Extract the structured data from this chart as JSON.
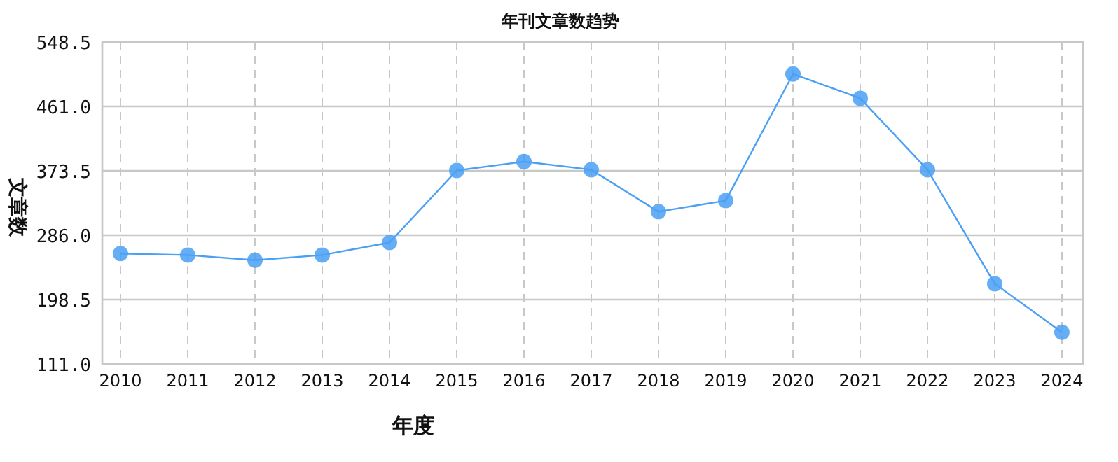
{
  "chart_data": {
    "type": "line",
    "title": "年刊文章数趋势",
    "xlabel": "年度",
    "ylabel": "文章数",
    "categories": [
      "2010",
      "2011",
      "2012",
      "2013",
      "2014",
      "2015",
      "2016",
      "2017",
      "2018",
      "2019",
      "2020",
      "2021",
      "2022",
      "2023",
      "2024"
    ],
    "series": [
      {
        "color": "#4aa0f5",
        "values": [
          261,
          259,
          252,
          259,
          276,
          374,
          386,
          375,
          318,
          333,
          505,
          472,
          375,
          220,
          154
        ]
      }
    ],
    "ylim": [
      111.0,
      548.5
    ],
    "yticks": [
      {
        "value": 111.0,
        "label": "111.0"
      },
      {
        "value": 198.5,
        "label": "198.5"
      },
      {
        "value": 286.0,
        "label": "286.0"
      },
      {
        "value": 373.5,
        "label": "373.5"
      },
      {
        "value": 461.0,
        "label": "461.0"
      },
      {
        "value": 548.5,
        "label": "548.5"
      }
    ],
    "grid": true,
    "marker": "circle",
    "line_style": "solid"
  }
}
